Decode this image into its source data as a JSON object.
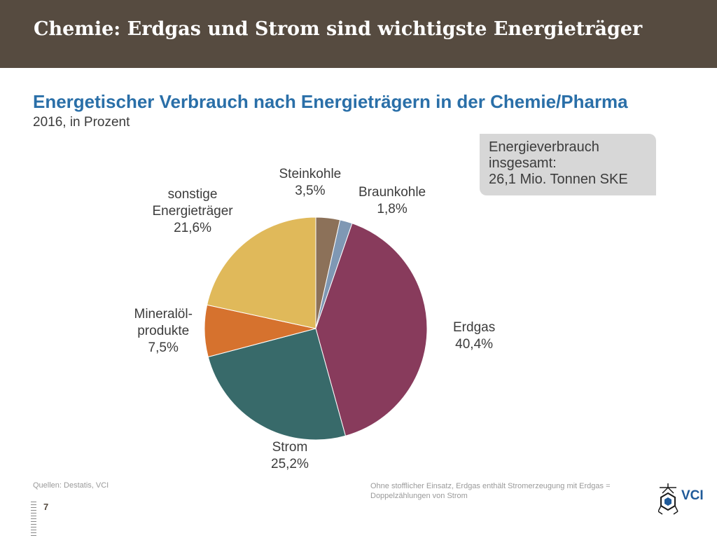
{
  "header": {
    "title": "Chemie: Erdgas und Strom sind wichtigste Energieträger"
  },
  "chart_data": {
    "type": "pie",
    "title": "Energetischer Verbrauch nach Energieträgern in der Chemie/Pharma",
    "subtitle": "2016, in Prozent",
    "slices": [
      {
        "name": "Steinkohle",
        "value": 3.5,
        "label_lines": [
          "Steinkohle",
          "3,5%"
        ],
        "color": "#8c7159"
      },
      {
        "name": "Braunkohle",
        "value": 1.8,
        "label_lines": [
          "Braunkohle",
          "1,8%"
        ],
        "color": "#7f98b4"
      },
      {
        "name": "Erdgas",
        "value": 40.4,
        "label_lines": [
          "Erdgas",
          "40,4%"
        ],
        "color": "#883b5c"
      },
      {
        "name": "Strom",
        "value": 25.2,
        "label_lines": [
          "Strom",
          "25,2%"
        ],
        "color": "#386a6a"
      },
      {
        "name": "Mineralölprodukte",
        "value": 7.5,
        "label_lines": [
          "Mineralöl-",
          "produkte",
          "7,5%"
        ],
        "color": "#d6722e"
      },
      {
        "name": "sonstige Energieträger",
        "value": 21.6,
        "label_lines": [
          "sonstige",
          "Energieträger",
          "21,6%"
        ],
        "color": "#e0b95a"
      }
    ],
    "start": "12 o'clock",
    "direction": "clockwise"
  },
  "info_box": {
    "line1": "Energieverbrauch",
    "line2": "insgesamt:",
    "line3": "26,1 Mio. Tonnen SKE"
  },
  "footer": {
    "sources": "Quellen: Destatis, VCI",
    "note_line1": "Ohne stofflicher Einsatz, Erdgas enthält Stromerzeugung mit Erdgas =",
    "note_line2": "Doppelzählungen von Strom",
    "page_number": "7"
  },
  "logo": {
    "text": "VCI",
    "accent_color": "#1f5a99"
  }
}
